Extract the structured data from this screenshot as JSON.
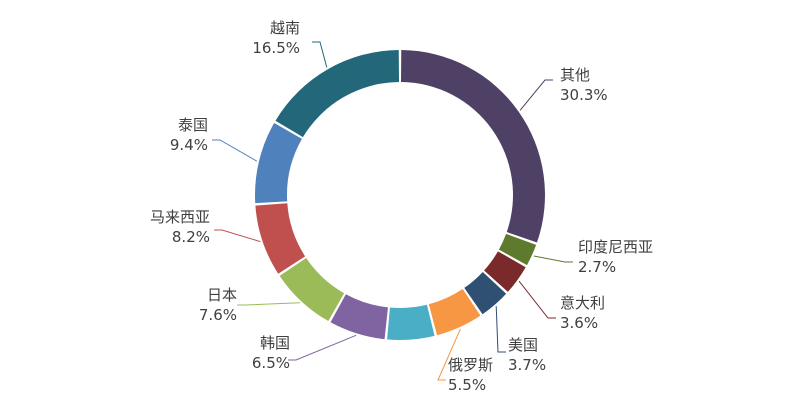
{
  "chart_data": {
    "type": "pie",
    "variant": "donut",
    "title": "",
    "legend": "none",
    "start_angle_deg": 0,
    "direction": "clockwise",
    "slices": [
      {
        "label": "其他",
        "value": 30.3,
        "value_label": "30.3%",
        "color": "#4f4166"
      },
      {
        "label": "印度尼西亚",
        "value": 2.7,
        "value_label": "2.7%",
        "color": "#5e7a2c"
      },
      {
        "label": "意大利",
        "value": 3.6,
        "value_label": "3.6%",
        "color": "#7b2a2c"
      },
      {
        "label": "美国",
        "value": 3.7,
        "value_label": "3.7%",
        "color": "#2f4f73"
      },
      {
        "label": "俄罗斯",
        "value": 5.5,
        "value_label": "5.5%",
        "color": "#f79643"
      },
      {
        "label": "",
        "value": 5.5,
        "value_label": "",
        "color": "#4baec7"
      },
      {
        "label": "韩国",
        "value": 6.5,
        "value_label": "6.5%",
        "color": "#8064a2"
      },
      {
        "label": "日本",
        "value": 7.6,
        "value_label": "7.6%",
        "color": "#9bbb59"
      },
      {
        "label": "马来西亚",
        "value": 8.2,
        "value_label": "8.2%",
        "color": "#c0504d"
      },
      {
        "label": "泰国",
        "value": 9.4,
        "value_label": "9.4%",
        "color": "#4f81bd"
      },
      {
        "label": "越南",
        "value": 16.5,
        "value_label": "16.5%",
        "color": "#23687a"
      }
    ]
  }
}
